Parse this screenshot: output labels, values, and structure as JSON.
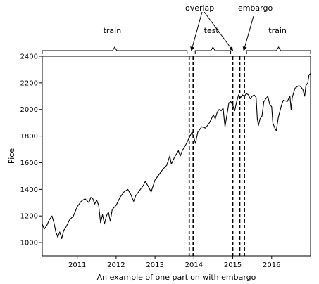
{
  "chart_data": {
    "type": "line",
    "xlabel": "An example of one partion with embargo",
    "ylabel": "Pice",
    "xlim": [
      2010.1,
      2017.0
    ],
    "ylim": [
      900,
      2400
    ],
    "x_ticks": [
      {
        "value": 2011,
        "label": "2011"
      },
      {
        "value": 2012,
        "label": "2012"
      },
      {
        "value": 2013,
        "label": "2013"
      },
      {
        "value": 2014,
        "label": "2014"
      },
      {
        "value": 2015,
        "label": "2015"
      },
      {
        "value": 2016,
        "label": "2016"
      }
    ],
    "y_ticks": [
      {
        "value": 1000,
        "label": "1000"
      },
      {
        "value": 1200,
        "label": "1200"
      },
      {
        "value": 1400,
        "label": "1400"
      },
      {
        "value": 1600,
        "label": "1600"
      },
      {
        "value": 1800,
        "label": "1800"
      },
      {
        "value": 2000,
        "label": "2000"
      },
      {
        "value": 2200,
        "label": "2200"
      },
      {
        "value": 2400,
        "label": "2400"
      }
    ],
    "series": [
      {
        "values": [
          [
            2010.1,
            1140
          ],
          [
            2010.15,
            1100
          ],
          [
            2010.22,
            1130
          ],
          [
            2010.28,
            1170
          ],
          [
            2010.35,
            1200
          ],
          [
            2010.4,
            1150
          ],
          [
            2010.45,
            1080
          ],
          [
            2010.5,
            1040
          ],
          [
            2010.55,
            1080
          ],
          [
            2010.6,
            1030
          ],
          [
            2010.65,
            1090
          ],
          [
            2010.7,
            1110
          ],
          [
            2010.75,
            1140
          ],
          [
            2010.8,
            1170
          ],
          [
            2010.9,
            1200
          ],
          [
            2011.0,
            1270
          ],
          [
            2011.1,
            1310
          ],
          [
            2011.2,
            1330
          ],
          [
            2011.3,
            1300
          ],
          [
            2011.35,
            1340
          ],
          [
            2011.4,
            1330
          ],
          [
            2011.45,
            1290
          ],
          [
            2011.5,
            1320
          ],
          [
            2011.55,
            1280
          ],
          [
            2011.6,
            1150
          ],
          [
            2011.65,
            1210
          ],
          [
            2011.7,
            1140
          ],
          [
            2011.75,
            1200
          ],
          [
            2011.8,
            1230
          ],
          [
            2011.85,
            1160
          ],
          [
            2011.9,
            1250
          ],
          [
            2012.0,
            1280
          ],
          [
            2012.1,
            1340
          ],
          [
            2012.2,
            1380
          ],
          [
            2012.3,
            1400
          ],
          [
            2012.38,
            1360
          ],
          [
            2012.45,
            1310
          ],
          [
            2012.5,
            1350
          ],
          [
            2012.6,
            1390
          ],
          [
            2012.7,
            1430
          ],
          [
            2012.75,
            1460
          ],
          [
            2012.85,
            1410
          ],
          [
            2012.9,
            1380
          ],
          [
            2013.0,
            1470
          ],
          [
            2013.1,
            1510
          ],
          [
            2013.2,
            1550
          ],
          [
            2013.3,
            1580
          ],
          [
            2013.38,
            1650
          ],
          [
            2013.42,
            1590
          ],
          [
            2013.5,
            1640
          ],
          [
            2013.6,
            1690
          ],
          [
            2013.65,
            1650
          ],
          [
            2013.7,
            1690
          ],
          [
            2013.8,
            1740
          ],
          [
            2013.85,
            1770
          ],
          [
            2013.95,
            1830
          ],
          [
            2014.0,
            1790
          ],
          [
            2014.04,
            1745
          ],
          [
            2014.1,
            1830
          ],
          [
            2014.2,
            1870
          ],
          [
            2014.3,
            1860
          ],
          [
            2014.4,
            1900
          ],
          [
            2014.5,
            1960
          ],
          [
            2014.55,
            1930
          ],
          [
            2014.6,
            1980
          ],
          [
            2014.65,
            2000
          ],
          [
            2014.7,
            1990
          ],
          [
            2014.75,
            2010
          ],
          [
            2014.8,
            1870
          ],
          [
            2014.85,
            1960
          ],
          [
            2014.9,
            2050
          ],
          [
            2014.95,
            2060
          ],
          [
            2015.0,
            2030
          ],
          [
            2015.05,
            1990
          ],
          [
            2015.1,
            2060
          ],
          [
            2015.15,
            2110
          ],
          [
            2015.2,
            2090
          ],
          [
            2015.25,
            2110
          ],
          [
            2015.3,
            2100
          ],
          [
            2015.35,
            2120
          ],
          [
            2015.4,
            2110
          ],
          [
            2015.45,
            2080
          ],
          [
            2015.5,
            2100
          ],
          [
            2015.55,
            2110
          ],
          [
            2015.6,
            2090
          ],
          [
            2015.63,
            1930
          ],
          [
            2015.66,
            1880
          ],
          [
            2015.7,
            1930
          ],
          [
            2015.75,
            1950
          ],
          [
            2015.8,
            2060
          ],
          [
            2015.85,
            2080
          ],
          [
            2015.9,
            2100
          ],
          [
            2015.95,
            2040
          ],
          [
            2016.0,
            2020
          ],
          [
            2016.03,
            1900
          ],
          [
            2016.08,
            1860
          ],
          [
            2016.12,
            1840
          ],
          [
            2016.17,
            1940
          ],
          [
            2016.25,
            2030
          ],
          [
            2016.3,
            2070
          ],
          [
            2016.4,
            2060
          ],
          [
            2016.47,
            2100
          ],
          [
            2016.5,
            2000
          ],
          [
            2016.53,
            2090
          ],
          [
            2016.6,
            2160
          ],
          [
            2016.7,
            2180
          ],
          [
            2016.75,
            2170
          ],
          [
            2016.8,
            2150
          ],
          [
            2016.85,
            2100
          ],
          [
            2016.88,
            2180
          ],
          [
            2016.93,
            2200
          ],
          [
            2016.96,
            2260
          ],
          [
            2017.0,
            2270
          ]
        ]
      }
    ],
    "vlines": [
      2013.88,
      2013.98,
      2015.0,
      2015.18,
      2015.3
    ],
    "annotations": [
      {
        "text": "train",
        "x": 2011.9,
        "level": "bottom"
      },
      {
        "text": "overlap",
        "x": 2014.15,
        "level": "top"
      },
      {
        "text": "test",
        "x": 2014.45,
        "level": "bottom"
      },
      {
        "text": "embargo",
        "x": 2015.58,
        "level": "top"
      },
      {
        "text": "train",
        "x": 2016.15,
        "level": "bottom"
      }
    ]
  }
}
